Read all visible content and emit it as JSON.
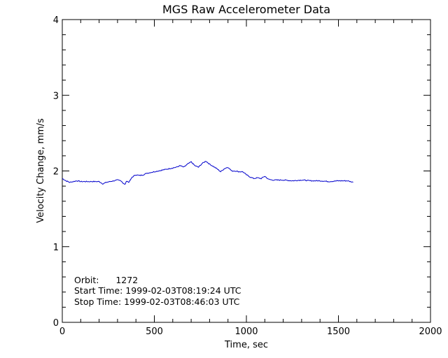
{
  "chart_data": {
    "type": "line",
    "title": "MGS Raw Accelerometer Data",
    "xlabel": "Time, sec",
    "ylabel": "Velocity Change, mm/s",
    "xlim": [
      0,
      2000
    ],
    "ylim": [
      0,
      4
    ],
    "xticks": [
      0,
      500,
      1000,
      1500,
      2000
    ],
    "yticks": [
      0,
      1,
      2,
      3,
      4
    ],
    "xtick_labels": [
      "0",
      "500",
      "1000",
      "1500",
      "2000"
    ],
    "ytick_labels": [
      "0",
      "1",
      "2",
      "3",
      "4"
    ],
    "grid": false,
    "line_color": "#0000cc",
    "series": [
      {
        "x": [
          0,
          20,
          40,
          60,
          80,
          100,
          150,
          200,
          220,
          240,
          260,
          280,
          300,
          320,
          330,
          340,
          350,
          360,
          370,
          380,
          400,
          420,
          440,
          460,
          480,
          500,
          520,
          540,
          560,
          580,
          600,
          620,
          640,
          660,
          680,
          700,
          720,
          740,
          760,
          780,
          800,
          820,
          840,
          860,
          880,
          900,
          920,
          940,
          960,
          980,
          1000,
          1020,
          1040,
          1060,
          1080,
          1100,
          1120,
          1140,
          1160,
          1200,
          1250,
          1300,
          1350,
          1400,
          1450,
          1500,
          1550,
          1580
        ],
        "y": [
          1.9,
          1.87,
          1.85,
          1.86,
          1.87,
          1.86,
          1.86,
          1.86,
          1.83,
          1.85,
          1.86,
          1.87,
          1.88,
          1.87,
          1.84,
          1.82,
          1.87,
          1.85,
          1.88,
          1.92,
          1.95,
          1.94,
          1.95,
          1.97,
          1.98,
          1.99,
          2.0,
          2.01,
          2.02,
          2.03,
          2.04,
          2.05,
          2.07,
          2.05,
          2.09,
          2.12,
          2.07,
          2.05,
          2.1,
          2.13,
          2.09,
          2.06,
          2.03,
          1.99,
          2.03,
          2.05,
          2.0,
          2.0,
          1.99,
          1.99,
          1.95,
          1.92,
          1.9,
          1.91,
          1.9,
          1.93,
          1.89,
          1.88,
          1.88,
          1.88,
          1.87,
          1.88,
          1.87,
          1.87,
          1.86,
          1.87,
          1.87,
          1.85
        ]
      }
    ],
    "annotations": [
      "Orbit:      1272",
      "Start Time: 1999-02-03T08:19:24 UTC",
      "Stop Time: 1999-02-03T08:46:03 UTC"
    ]
  }
}
